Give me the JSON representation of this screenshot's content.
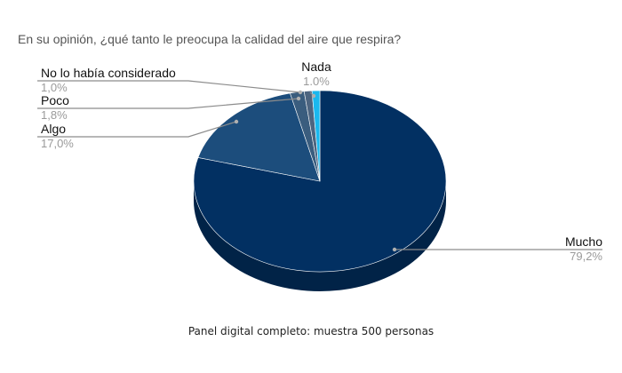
{
  "chart_data": {
    "type": "pie",
    "title": "En su opinión, ¿qué tanto le preocupa la calidad del aire que respira?",
    "footnote": "Panel digital completo: muestra 500 personas",
    "slices": [
      {
        "name": "Mucho",
        "value": 79.2,
        "label": "79,2%",
        "color": "#023062"
      },
      {
        "name": "Algo",
        "value": 17.0,
        "label": "17,0%",
        "color": "#1c4d7c"
      },
      {
        "name": "Poco",
        "value": 1.8,
        "label": "1,8%",
        "color": "#3a5d7e"
      },
      {
        "name": "No lo había considerado",
        "value": 1.0,
        "label": "1,0%",
        "color": "#4d6580"
      },
      {
        "name": "Nada",
        "value": 1.0,
        "label": "1.0%",
        "color": "#1ab8ee"
      }
    ],
    "legend": "none"
  }
}
